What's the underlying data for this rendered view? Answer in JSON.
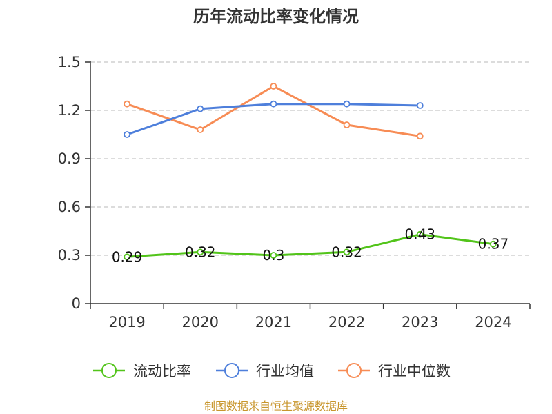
{
  "chart_data": {
    "type": "line",
    "title": "历年流动比率变化情况",
    "categories": [
      "2019",
      "2020",
      "2021",
      "2022",
      "2023",
      "2024"
    ],
    "ylim": [
      0,
      1.5
    ],
    "yticks": [
      "0",
      "0.3",
      "0.6",
      "0.9",
      "1.2",
      "1.5"
    ],
    "grid": true,
    "legend_position": "bottom",
    "series": [
      {
        "name": "流动比率",
        "color": "#52c41a",
        "values": [
          0.29,
          0.32,
          0.3,
          0.32,
          0.43,
          0.37
        ],
        "labels": [
          "0.29",
          "0.32",
          "0.3",
          "0.32",
          "0.43",
          "0.37"
        ]
      },
      {
        "name": "行业均值",
        "color": "#4e7fdb",
        "values": [
          1.05,
          1.21,
          1.24,
          1.24,
          1.23,
          null
        ]
      },
      {
        "name": "行业中位数",
        "color": "#f78c55",
        "values": [
          1.24,
          1.08,
          1.35,
          1.11,
          1.04,
          null
        ]
      }
    ]
  },
  "footer": {
    "source": "制图数据来自恒生聚源数据库"
  }
}
